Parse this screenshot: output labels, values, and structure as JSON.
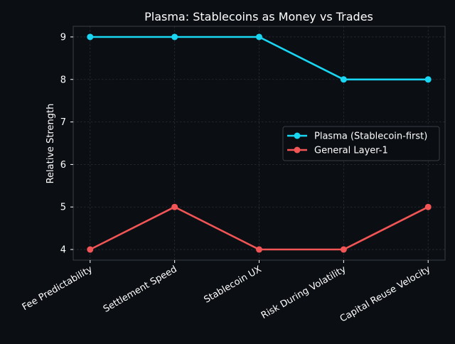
{
  "chart_data": {
    "type": "line",
    "title": "Plasma: Stablecoins as Money vs Trades",
    "xlabel": "",
    "ylabel": "Relative Strength",
    "categories": [
      "Fee Predictability",
      "Settlement Speed",
      "Stablecoin UX",
      "Risk During Volatility",
      "Capital Reuse Velocity"
    ],
    "ylim": [
      3.75,
      9.25
    ],
    "yticks": [
      4,
      5,
      6,
      7,
      8,
      9
    ],
    "grid": true,
    "legend_position": "center-right",
    "series": [
      {
        "name": "Plasma (Stablecoin-first)",
        "values": [
          9,
          9,
          9,
          8,
          8
        ],
        "color": "#19d6f2"
      },
      {
        "name": "General Layer-1",
        "values": [
          4,
          5,
          4,
          4,
          5
        ],
        "color": "#f25555"
      }
    ]
  },
  "theme": {
    "background": "#0b0e13",
    "axes_background": "#0b0e13",
    "text": "#ffffff",
    "spine": "#3a3f47",
    "grid": "#2a2f37"
  }
}
